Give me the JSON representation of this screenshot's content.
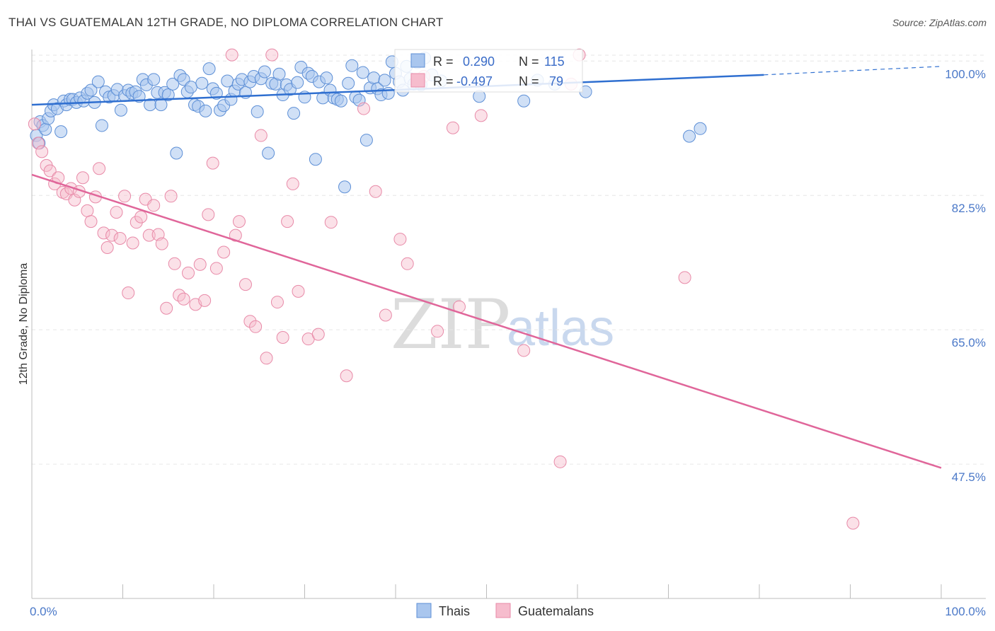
{
  "header": {
    "title": "THAI VS GUATEMALAN 12TH GRADE, NO DIPLOMA CORRELATION CHART",
    "source": "Source: ZipAtlas.com"
  },
  "watermark": {
    "zip": "ZIP",
    "atlas": "atlas"
  },
  "legend_box": {
    "rows": [
      {
        "r_label": "R =",
        "r_value": "0.290",
        "n_label": "N =",
        "n_value": "115"
      },
      {
        "r_label": "R =",
        "r_value": "-0.497",
        "n_label": "N =",
        "n_value": "79"
      }
    ]
  },
  "bottom_legend": {
    "thais": "Thais",
    "guatemalans": "Guatemalans"
  },
  "colors": {
    "thai_fill": "#a9c6ee",
    "thai_stroke": "#5d8fd6",
    "thai_line": "#2f6fd0",
    "guat_fill": "#f6bccd",
    "guat_stroke": "#e88aa8",
    "guat_line": "#e0669a",
    "tick_text": "#4a78c8",
    "grid": "#e6e6e6"
  },
  "chart_data": {
    "type": "scatter",
    "ylabel": "12th Grade, No Diploma",
    "xlabel": "",
    "xlim": [
      0,
      100
    ],
    "ylim": [
      30,
      101.5
    ],
    "y_ticks": [
      47.5,
      65.0,
      82.5,
      100.0
    ],
    "y_tick_labels": [
      "47.5%",
      "65.0%",
      "82.5%",
      "100.0%"
    ],
    "x_tick_labels": [
      "0.0%",
      "100.0%"
    ],
    "series": [
      {
        "name": "Thais",
        "r": 0.29,
        "n": 115,
        "trend": {
          "x0": 0,
          "y0": 94.3,
          "x1": 80.5,
          "y1": 98.2,
          "dash_x1": 100,
          "dash_y1": 99.3
        },
        "points": [
          [
            0.5,
            90.3
          ],
          [
            0.8,
            89.3
          ],
          [
            0.9,
            92.1
          ],
          [
            1.2,
            91.6
          ],
          [
            1.5,
            91.1
          ],
          [
            1.8,
            92.5
          ],
          [
            2.1,
            93.5
          ],
          [
            2.4,
            94.3
          ],
          [
            2.8,
            93.8
          ],
          [
            3.2,
            90.8
          ],
          [
            3.5,
            94.8
          ],
          [
            3.8,
            94.3
          ],
          [
            4.2,
            95.0
          ],
          [
            4.5,
            95.0
          ],
          [
            4.9,
            94.6
          ],
          [
            5.3,
            95.2
          ],
          [
            5.7,
            94.8
          ],
          [
            6.1,
            95.8
          ],
          [
            6.5,
            96.2
          ],
          [
            6.9,
            94.6
          ],
          [
            7.3,
            97.3
          ],
          [
            7.7,
            91.6
          ],
          [
            8.1,
            96.0
          ],
          [
            8.5,
            95.3
          ],
          [
            9.0,
            95.5
          ],
          [
            9.4,
            96.3
          ],
          [
            9.8,
            93.6
          ],
          [
            10.2,
            95.5
          ],
          [
            10.6,
            96.2
          ],
          [
            11.0,
            95.8
          ],
          [
            11.4,
            96.0
          ],
          [
            11.8,
            95.4
          ],
          [
            12.2,
            97.6
          ],
          [
            12.6,
            96.9
          ],
          [
            13.0,
            94.3
          ],
          [
            13.4,
            97.6
          ],
          [
            13.8,
            95.9
          ],
          [
            14.2,
            94.3
          ],
          [
            14.6,
            95.9
          ],
          [
            15.0,
            95.6
          ],
          [
            15.5,
            97.0
          ],
          [
            15.9,
            88.0
          ],
          [
            16.3,
            98.1
          ],
          [
            16.7,
            97.6
          ],
          [
            17.1,
            96.0
          ],
          [
            17.5,
            96.6
          ],
          [
            17.9,
            94.3
          ],
          [
            18.3,
            94.1
          ],
          [
            18.7,
            97.1
          ],
          [
            19.1,
            93.5
          ],
          [
            19.5,
            99.0
          ],
          [
            19.9,
            96.4
          ],
          [
            20.3,
            95.8
          ],
          [
            20.7,
            93.6
          ],
          [
            21.1,
            94.2
          ],
          [
            21.5,
            97.4
          ],
          [
            21.9,
            95.0
          ],
          [
            22.3,
            96.1
          ],
          [
            22.7,
            97.0
          ],
          [
            23.1,
            97.6
          ],
          [
            23.5,
            95.9
          ],
          [
            24.0,
            97.3
          ],
          [
            24.4,
            98.0
          ],
          [
            24.8,
            93.4
          ],
          [
            25.2,
            97.7
          ],
          [
            25.6,
            98.6
          ],
          [
            26.0,
            88.0
          ],
          [
            26.4,
            97.1
          ],
          [
            26.8,
            97.0
          ],
          [
            27.2,
            98.3
          ],
          [
            27.6,
            95.6
          ],
          [
            28.0,
            96.9
          ],
          [
            28.4,
            96.3
          ],
          [
            28.8,
            93.2
          ],
          [
            29.2,
            97.2
          ],
          [
            29.6,
            99.2
          ],
          [
            30.0,
            95.3
          ],
          [
            30.4,
            98.4
          ],
          [
            30.8,
            98.0
          ],
          [
            31.2,
            87.2
          ],
          [
            31.6,
            97.3
          ],
          [
            32.0,
            95.2
          ],
          [
            32.4,
            97.8
          ],
          [
            32.8,
            96.2
          ],
          [
            33.2,
            95.2
          ],
          [
            33.6,
            95.0
          ],
          [
            34.0,
            94.8
          ],
          [
            34.4,
            83.6
          ],
          [
            34.8,
            97.1
          ],
          [
            35.2,
            99.4
          ],
          [
            35.6,
            95.3
          ],
          [
            36.0,
            94.9
          ],
          [
            36.4,
            98.5
          ],
          [
            36.8,
            89.7
          ],
          [
            37.2,
            96.5
          ],
          [
            37.6,
            97.8
          ],
          [
            38.0,
            96.4
          ],
          [
            38.4,
            95.6
          ],
          [
            38.8,
            97.5
          ],
          [
            39.2,
            95.8
          ],
          [
            39.6,
            99.9
          ],
          [
            40.0,
            98.4
          ],
          [
            40.4,
            97.3
          ],
          [
            40.8,
            96.2
          ],
          [
            41.2,
            99.3
          ],
          [
            41.6,
            97.7
          ],
          [
            42.0,
            97.0
          ],
          [
            42.4,
            99.8
          ],
          [
            42.8,
            96.9
          ],
          [
            43.2,
            100.4
          ],
          [
            44.0,
            98.2
          ],
          [
            45.0,
            97.4
          ],
          [
            49.2,
            95.4
          ],
          [
            54.1,
            94.8
          ],
          [
            57.5,
            97.0
          ],
          [
            72.3,
            90.2
          ],
          [
            73.5,
            91.2
          ],
          [
            60.9,
            96.0
          ],
          [
            55.6,
            97.5
          ]
        ]
      },
      {
        "name": "Guatemalans",
        "r": -0.497,
        "n": 79,
        "trend": {
          "x0": 0,
          "y0": 85.2,
          "x1": 100,
          "y1": 47.0
        },
        "points": [
          [
            0.3,
            91.8
          ],
          [
            0.7,
            89.3
          ],
          [
            1.1,
            88.2
          ],
          [
            1.6,
            86.4
          ],
          [
            2.0,
            85.7
          ],
          [
            2.5,
            84.0
          ],
          [
            2.9,
            84.8
          ],
          [
            3.4,
            82.9
          ],
          [
            3.8,
            82.7
          ],
          [
            4.3,
            83.4
          ],
          [
            4.7,
            81.9
          ],
          [
            5.2,
            83.0
          ],
          [
            5.6,
            84.8
          ],
          [
            6.1,
            80.5
          ],
          [
            6.5,
            79.1
          ],
          [
            7.0,
            82.3
          ],
          [
            7.4,
            86.0
          ],
          [
            7.9,
            77.6
          ],
          [
            8.3,
            75.7
          ],
          [
            8.8,
            77.3
          ],
          [
            9.3,
            80.3
          ],
          [
            9.7,
            76.9
          ],
          [
            10.2,
            82.4
          ],
          [
            10.6,
            69.8
          ],
          [
            11.1,
            76.3
          ],
          [
            11.5,
            79.0
          ],
          [
            12.0,
            79.7
          ],
          [
            12.5,
            82.0
          ],
          [
            12.9,
            77.3
          ],
          [
            13.4,
            81.2
          ],
          [
            13.9,
            77.4
          ],
          [
            14.3,
            76.2
          ],
          [
            14.8,
            67.8
          ],
          [
            15.3,
            82.4
          ],
          [
            15.7,
            73.6
          ],
          [
            16.2,
            69.5
          ],
          [
            16.7,
            69.0
          ],
          [
            17.2,
            72.4
          ],
          [
            18.0,
            68.3
          ],
          [
            18.5,
            73.5
          ],
          [
            19.0,
            68.8
          ],
          [
            19.4,
            80.0
          ],
          [
            19.9,
            86.7
          ],
          [
            20.3,
            73.0
          ],
          [
            21.1,
            75.1
          ],
          [
            22.0,
            100.8
          ],
          [
            22.4,
            77.3
          ],
          [
            22.8,
            79.1
          ],
          [
            23.5,
            70.9
          ],
          [
            24.0,
            66.1
          ],
          [
            24.6,
            65.4
          ],
          [
            25.2,
            90.3
          ],
          [
            25.8,
            61.3
          ],
          [
            26.4,
            100.8
          ],
          [
            27.0,
            68.6
          ],
          [
            27.6,
            64.0
          ],
          [
            28.1,
            79.1
          ],
          [
            28.7,
            84.0
          ],
          [
            29.3,
            70.0
          ],
          [
            30.4,
            63.8
          ],
          [
            31.5,
            64.4
          ],
          [
            32.9,
            79.0
          ],
          [
            34.6,
            59.0
          ],
          [
            36.5,
            93.8
          ],
          [
            37.8,
            83.0
          ],
          [
            38.9,
            66.9
          ],
          [
            40.5,
            76.8
          ],
          [
            41.3,
            73.6
          ],
          [
            43.1,
            98.0
          ],
          [
            44.6,
            64.8
          ],
          [
            46.3,
            91.3
          ],
          [
            47.0,
            68.0
          ],
          [
            49.4,
            92.9
          ],
          [
            54.1,
            62.3
          ],
          [
            58.1,
            47.8
          ],
          [
            59.3,
            97.0
          ],
          [
            60.2,
            100.8
          ],
          [
            71.8,
            71.8
          ],
          [
            90.3,
            39.8
          ]
        ]
      }
    ]
  }
}
